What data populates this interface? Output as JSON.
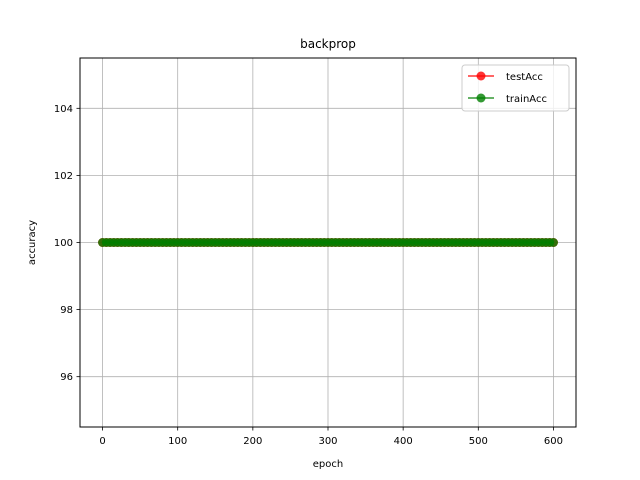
{
  "chart_data": {
    "type": "line",
    "title": "backprop",
    "xlabel": "epoch",
    "ylabel": "accuracy",
    "xlim": [
      -30,
      630
    ],
    "ylim": [
      94.5,
      105.5
    ],
    "xticks": [
      0,
      100,
      200,
      300,
      400,
      500,
      600
    ],
    "yticks": [
      96,
      98,
      100,
      102,
      104
    ],
    "grid": true,
    "legend_position": "top-right",
    "x_start": 0,
    "x_end": 600,
    "x_step": 5,
    "series": [
      {
        "name": "testAcc",
        "color": "#ff0000",
        "marker": "circle",
        "value": 100
      },
      {
        "name": "trainAcc",
        "color": "#008000",
        "marker": "circle",
        "value": 100
      }
    ]
  }
}
